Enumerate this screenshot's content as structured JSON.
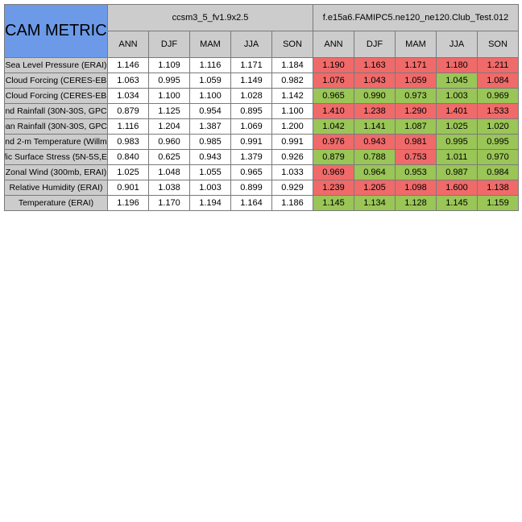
{
  "title": "CAM METRICS",
  "groups": [
    {
      "name": "ccsm3_5_fv1.9x2.5"
    },
    {
      "name": "f.e15a6.FAMIPC5.ne120_ne120.Club_Test.012"
    }
  ],
  "seasons": [
    "ANN",
    "DJF",
    "MAM",
    "JJA",
    "SON"
  ],
  "colors": {
    "header_bg": "#cccccc",
    "title_bg": "#6c9ae8",
    "worse": "#f06a6a",
    "better": "#9ac557"
  },
  "rows": [
    {
      "label": "Sea Level Pressure (ERAI)",
      "ref": [
        "1.146",
        "1.109",
        "1.116",
        "1.171",
        "1.184"
      ],
      "test": [
        "1.190",
        "1.163",
        "1.171",
        "1.180",
        "1.211"
      ],
      "status": [
        "bad",
        "bad",
        "bad",
        "bad",
        "bad"
      ]
    },
    {
      "label": "Cloud Forcing (CERES-EB",
      "ref": [
        "1.063",
        "0.995",
        "1.059",
        "1.149",
        "0.982"
      ],
      "test": [
        "1.076",
        "1.043",
        "1.059",
        "1.045",
        "1.084"
      ],
      "status": [
        "bad",
        "bad",
        "bad",
        "good",
        "bad"
      ]
    },
    {
      "label": "Cloud Forcing (CERES-EB",
      "ref": [
        "1.034",
        "1.100",
        "1.100",
        "1.028",
        "1.142"
      ],
      "test": [
        "0.965",
        "0.990",
        "0.973",
        "1.003",
        "0.969"
      ],
      "status": [
        "good",
        "good",
        "good",
        "good",
        "good"
      ]
    },
    {
      "label": "nd Rainfall (30N-30S, GPC",
      "ref": [
        "0.879",
        "1.125",
        "0.954",
        "0.895",
        "1.100"
      ],
      "test": [
        "1.410",
        "1.238",
        "1.290",
        "1.401",
        "1.533"
      ],
      "status": [
        "bad",
        "bad",
        "bad",
        "bad",
        "bad"
      ]
    },
    {
      "label": "ean Rainfall (30N-30S, GPC",
      "ref": [
        "1.116",
        "1.204",
        "1.387",
        "1.069",
        "1.200"
      ],
      "test": [
        "1.042",
        "1.141",
        "1.087",
        "1.025",
        "1.020"
      ],
      "status": [
        "good",
        "good",
        "good",
        "good",
        "good"
      ]
    },
    {
      "label": "nd 2-m Temperature (Willm",
      "ref": [
        "0.983",
        "0.960",
        "0.985",
        "0.991",
        "0.991"
      ],
      "test": [
        "0.976",
        "0.943",
        "0.981",
        "0.995",
        "0.995"
      ],
      "status": [
        "bad",
        "bad",
        "bad",
        "good",
        "good"
      ]
    },
    {
      "label": "fic Surface Stress (5N-5S,E",
      "ref": [
        "0.840",
        "0.625",
        "0.943",
        "1.379",
        "0.926"
      ],
      "test": [
        "0.879",
        "0.788",
        "0.753",
        "1.011",
        "0.970"
      ],
      "status": [
        "good",
        "good",
        "bad",
        "good",
        "good"
      ]
    },
    {
      "label": "Zonal Wind (300mb, ERAI)",
      "ref": [
        "1.025",
        "1.048",
        "1.055",
        "0.965",
        "1.033"
      ],
      "test": [
        "0.969",
        "0.964",
        "0.953",
        "0.987",
        "0.984"
      ],
      "status": [
        "bad",
        "good",
        "good",
        "good",
        "good"
      ]
    },
    {
      "label": "Relative Humidity (ERAI)",
      "ref": [
        "0.901",
        "1.038",
        "1.003",
        "0.899",
        "0.929"
      ],
      "test": [
        "1.239",
        "1.205",
        "1.098",
        "1.600",
        "1.138"
      ],
      "status": [
        "bad",
        "bad",
        "bad",
        "bad",
        "bad"
      ]
    },
    {
      "label": "Temperature (ERAI)",
      "ref": [
        "1.196",
        "1.170",
        "1.194",
        "1.164",
        "1.186"
      ],
      "test": [
        "1.145",
        "1.134",
        "1.128",
        "1.145",
        "1.159"
      ],
      "status": [
        "good",
        "good",
        "good",
        "good",
        "good"
      ]
    }
  ]
}
